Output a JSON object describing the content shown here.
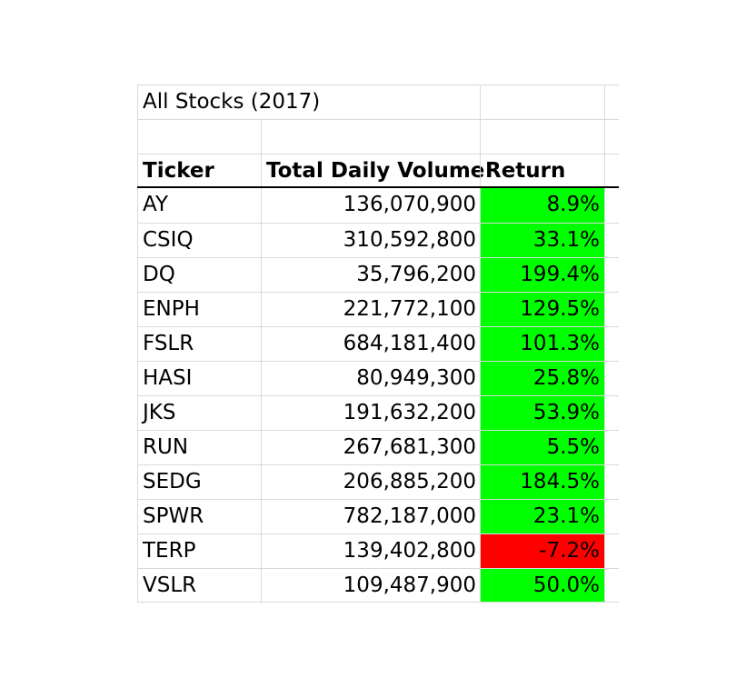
{
  "title": "All Stocks (2017)",
  "headers": {
    "ticker": "Ticker",
    "volume": "Total Daily Volume",
    "return": "Return"
  },
  "colors": {
    "positive": "#00ff00",
    "negative": "#ff0000",
    "gridline": "#d9d9d9"
  },
  "rows": [
    {
      "ticker": "AY",
      "volume": "136,070,900",
      "return": "8.9%",
      "sign": "positive"
    },
    {
      "ticker": "CSIQ",
      "volume": "310,592,800",
      "return": "33.1%",
      "sign": "positive"
    },
    {
      "ticker": "DQ",
      "volume": "35,796,200",
      "return": "199.4%",
      "sign": "positive"
    },
    {
      "ticker": "ENPH",
      "volume": "221,772,100",
      "return": "129.5%",
      "sign": "positive"
    },
    {
      "ticker": "FSLR",
      "volume": "684,181,400",
      "return": "101.3%",
      "sign": "positive"
    },
    {
      "ticker": "HASI",
      "volume": "80,949,300",
      "return": "25.8%",
      "sign": "positive"
    },
    {
      "ticker": "JKS",
      "volume": "191,632,200",
      "return": "53.9%",
      "sign": "positive"
    },
    {
      "ticker": "RUN",
      "volume": "267,681,300",
      "return": "5.5%",
      "sign": "positive"
    },
    {
      "ticker": "SEDG",
      "volume": "206,885,200",
      "return": "184.5%",
      "sign": "positive"
    },
    {
      "ticker": "SPWR",
      "volume": "782,187,000",
      "return": "23.1%",
      "sign": "positive"
    },
    {
      "ticker": "TERP",
      "volume": "139,402,800",
      "return": "-7.2%",
      "sign": "negative"
    },
    {
      "ticker": "VSLR",
      "volume": "109,487,900",
      "return": "50.0%",
      "sign": "positive"
    }
  ]
}
